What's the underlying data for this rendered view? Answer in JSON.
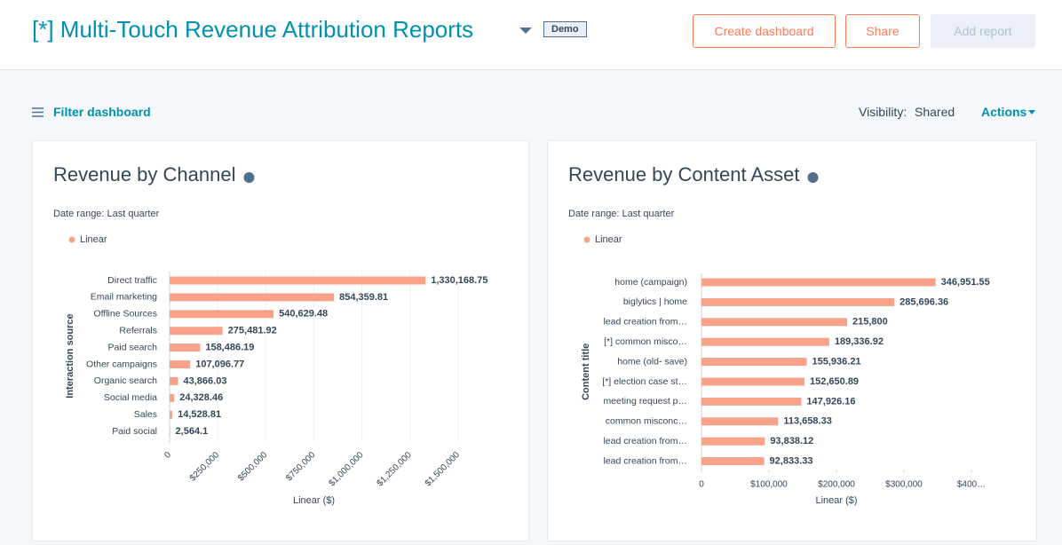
{
  "header": {
    "title": "[*] Multi-Touch Revenue Attribution Reports",
    "badge": "Demo",
    "buttons": [
      "Create dashboard",
      "Share",
      "Add report"
    ]
  },
  "toolbar": {
    "filter": "Filter dashboard",
    "visibility_label": "Visibility:",
    "visibility_value": "Shared",
    "actions": "Actions"
  },
  "chart_data": [
    {
      "type": "bar",
      "orientation": "horizontal",
      "title": "Revenue by Channel",
      "subtitle": "Date range: Last quarter",
      "xlabel": "Linear ($)",
      "ylabel": "Interaction source",
      "categories": [
        "Direct traffic",
        "Email marketing",
        "Offline Sources",
        "Referrals",
        "Paid search",
        "Other campaigns",
        "Organic search",
        "Social media",
        "Sales",
        "Paid social"
      ],
      "series": [
        {
          "name": "Linear",
          "color": "#f8a28a",
          "values": [
            1330168.75,
            854359.81,
            540629.48,
            275481.92,
            158486.19,
            107096.77,
            43866.03,
            24328.46,
            14528.81,
            2564.1
          ],
          "value_labels": [
            "1,330,168.75",
            "854,359.81",
            "540,629.48",
            "275,481.92",
            "158,486.19",
            "107,096.77",
            "43,866.03",
            "24,328.46",
            "14,528.81",
            "2,564.1"
          ]
        }
      ],
      "xlim": [
        0,
        1500000
      ],
      "xticks": [
        0,
        {
          "value": 250000,
          "label": "$250,000"
        },
        {
          "value": 500000,
          "label": "$500,000"
        },
        {
          "value": 750000,
          "label": "$750,000"
        },
        {
          "value": 1000000,
          "label": "$1,000,000"
        },
        {
          "value": 1250000,
          "label": "$1,250,000"
        },
        {
          "value": 1500000,
          "label": "$1,500,000"
        }
      ],
      "grid": true
    },
    {
      "type": "bar",
      "orientation": "horizontal",
      "title": "Revenue by Content Asset",
      "subtitle": "Date range: Last quarter",
      "xlabel": "Linear ($)",
      "ylabel": "Content title",
      "categories": [
        "home (campaign)",
        "biglytics | home",
        "lead creation from…",
        "[*] common misco…",
        "home (old- save)",
        "[*] election case st…",
        "meeting request p…",
        "common misconc…",
        "lead creation from…",
        "lead creation from…"
      ],
      "series": [
        {
          "name": "Linear",
          "color": "#f8a28a",
          "values": [
            346951.55,
            285696.36,
            215800,
            189336.92,
            155936.21,
            152650.89,
            147926.16,
            113658.33,
            93838.12,
            92833.33
          ],
          "value_labels": [
            "346,951.55",
            "285,696.36",
            "215,800",
            "189,336.92",
            "155,936.21",
            "152,650.89",
            "147,926.16",
            "113,658.33",
            "93,838.12",
            "92,833.33"
          ]
        }
      ],
      "xlim": [
        0,
        400000
      ],
      "xticks": [
        0,
        {
          "value": 100000,
          "label": "$100,000"
        },
        {
          "value": 200000,
          "label": "$200,000"
        },
        {
          "value": 300000,
          "label": "$300,000"
        },
        {
          "value": 400000,
          "label": "$400…"
        }
      ],
      "grid": false
    }
  ]
}
